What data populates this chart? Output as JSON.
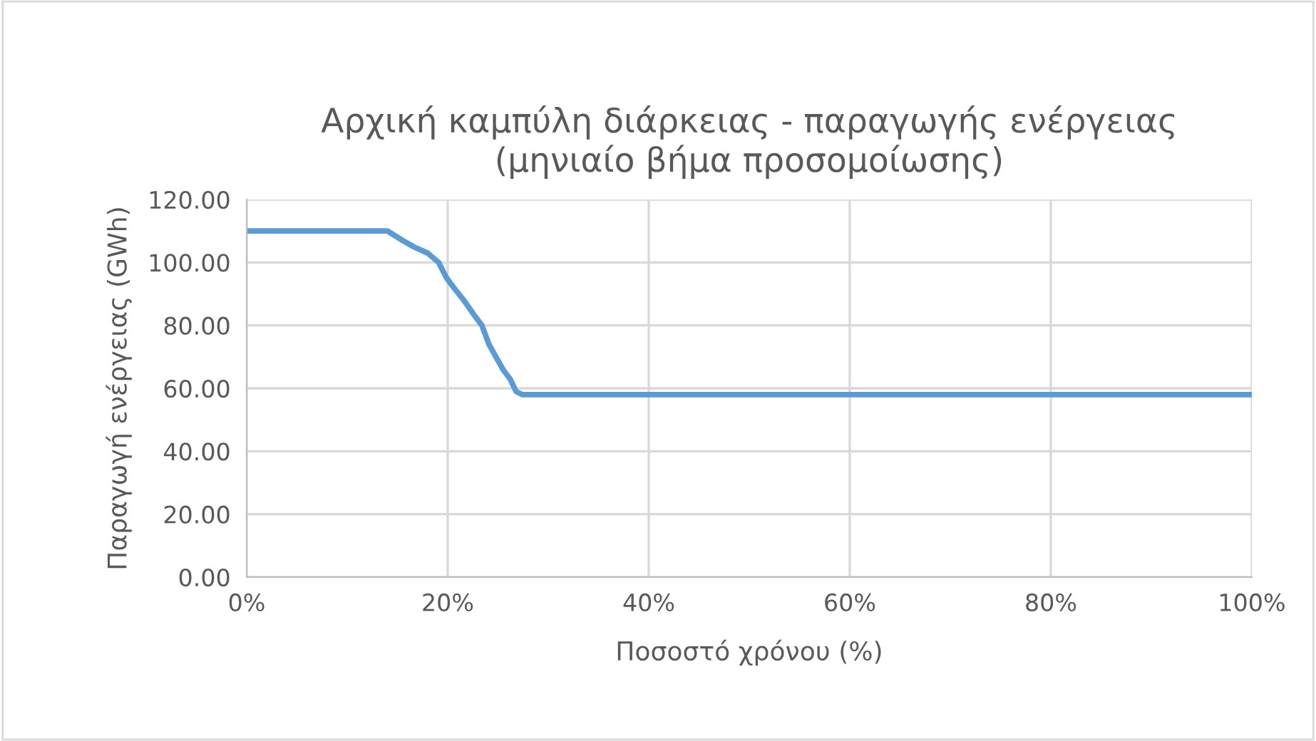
{
  "chart_data": {
    "type": "line",
    "title": "Αρχική καμπύλη διάρκειας - παραγωγής ενέργειας\n(μηνιαίο βήμα προσομοίωσης)",
    "xlabel": "Ποσοστό χρόνου (%)",
    "ylabel": "Παραγωγή ενέργειας (GWh)",
    "x": [
      0,
      14,
      15.5,
      16.6,
      18,
      19.1,
      19.9,
      20.6,
      21.6,
      22.7,
      23.4,
      24.1,
      24.8,
      25.5,
      26.2,
      26.8,
      27.4,
      100
    ],
    "series": [
      {
        "color": "#5b9bd5",
        "values": [
          110,
          110,
          107,
          105,
          103,
          100,
          95,
          92,
          88,
          83,
          80,
          74,
          70,
          66,
          63,
          59,
          58,
          58
        ]
      }
    ],
    "xlim": [
      0,
      100
    ],
    "xticks": [
      {
        "value": 0,
        "label": "0%"
      },
      {
        "value": 20,
        "label": "20%"
      },
      {
        "value": 40,
        "label": "40%"
      },
      {
        "value": 60,
        "label": "60%"
      },
      {
        "value": 80,
        "label": "80%"
      },
      {
        "value": 100,
        "label": "100%"
      }
    ],
    "ylim": [
      0,
      120
    ],
    "yticks": [
      {
        "value": 0,
        "label": "0.00"
      },
      {
        "value": 20,
        "label": "20.00"
      },
      {
        "value": 40,
        "label": "40.00"
      },
      {
        "value": 60,
        "label": "60.00"
      },
      {
        "value": 80,
        "label": "80.00"
      },
      {
        "value": 100,
        "label": "100.00"
      },
      {
        "value": 120,
        "label": "120.00"
      }
    ],
    "grid": true,
    "legend": false,
    "marker": "none",
    "line_style": "solid"
  }
}
